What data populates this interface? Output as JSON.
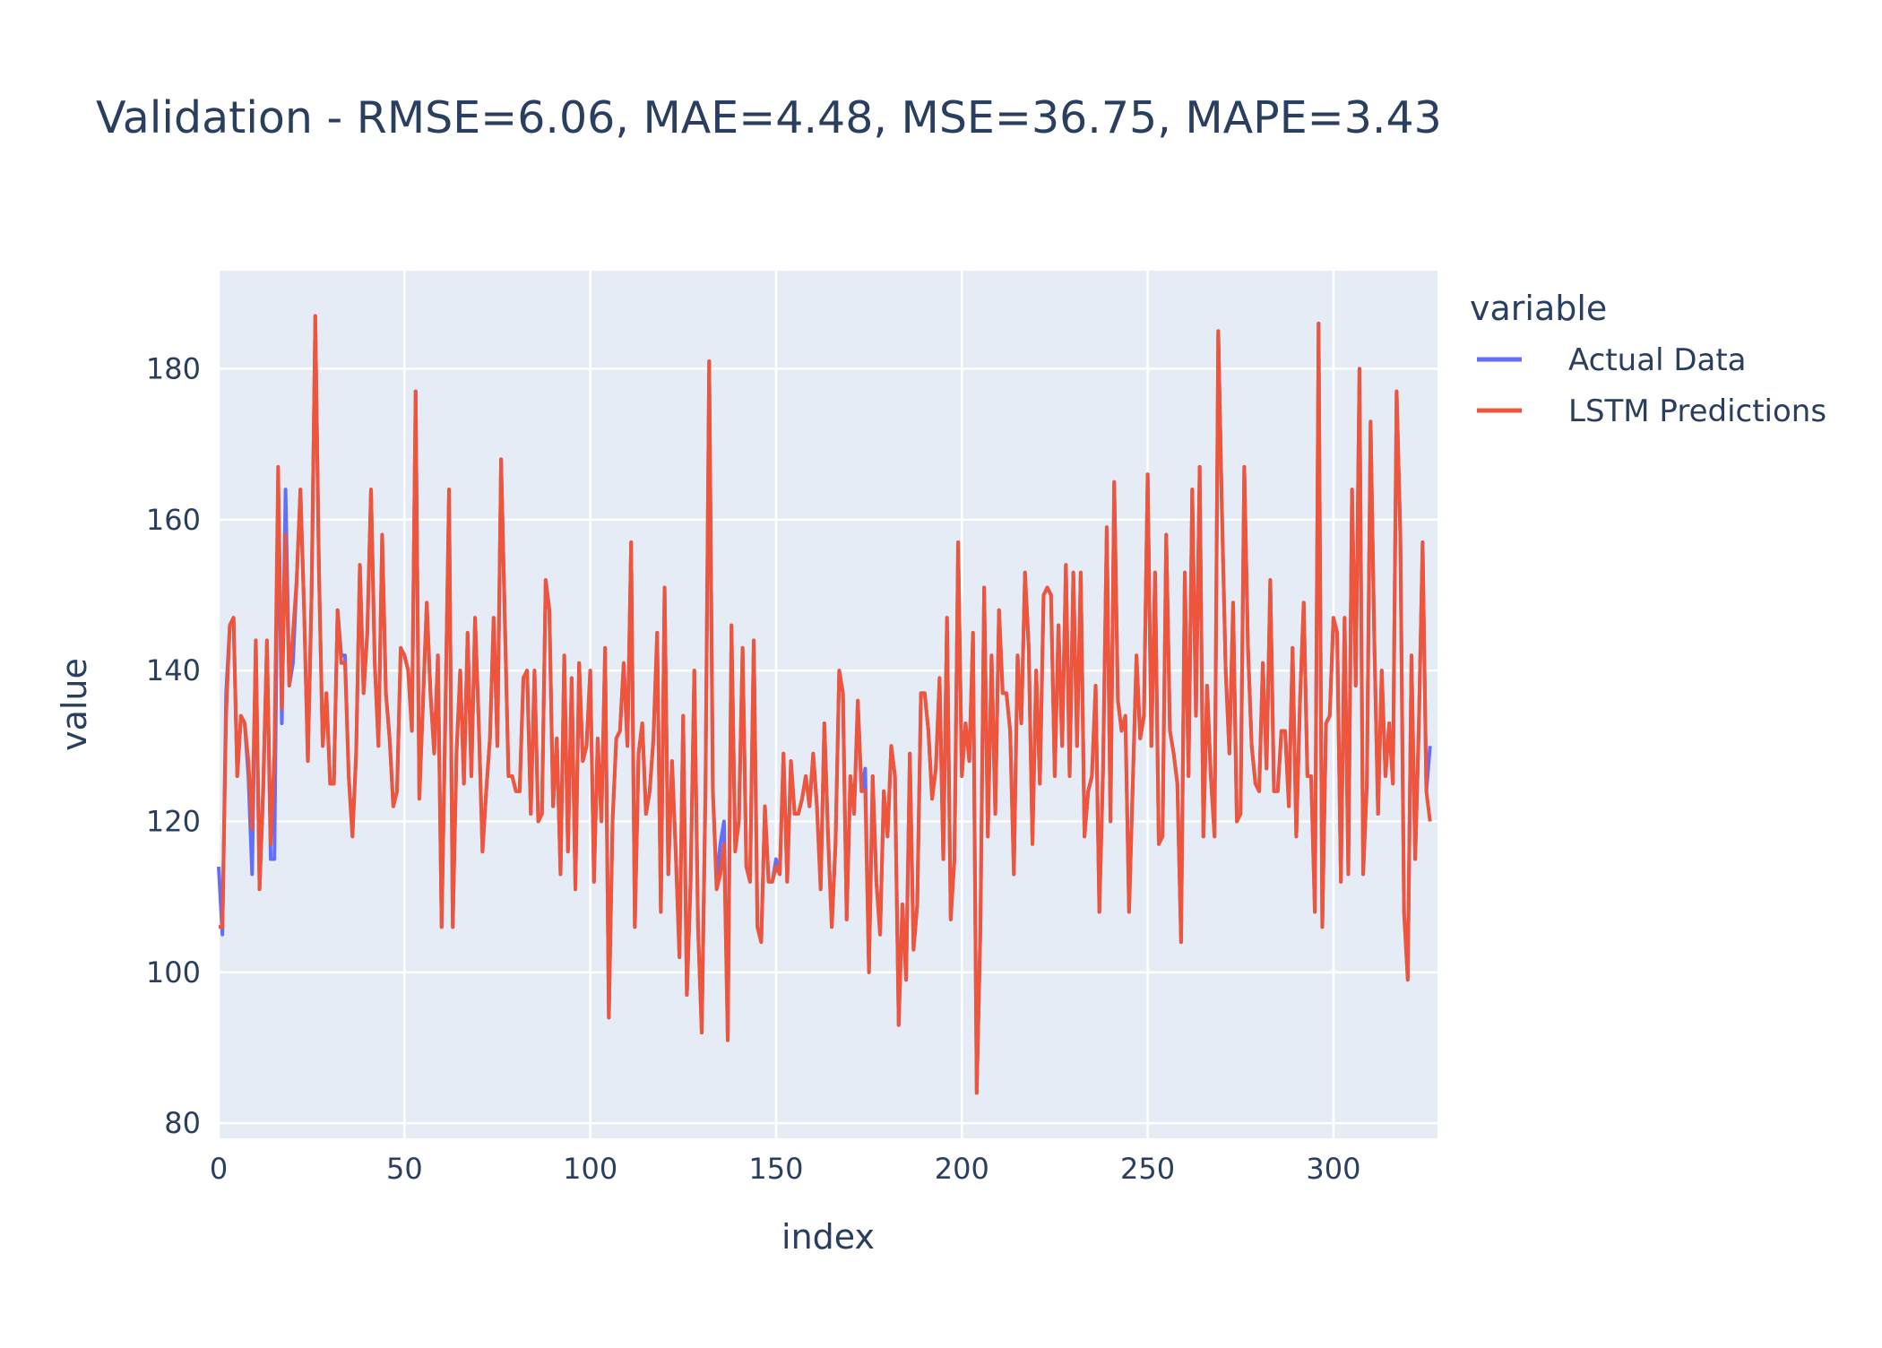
{
  "chart_data": {
    "type": "line",
    "title": "Validation - RMSE=6.06, MAE=4.48, MSE=36.75, MAPE=3.43",
    "xlabel": "index",
    "ylabel": "value",
    "xlim": [
      0,
      328
    ],
    "ylim": [
      78,
      193
    ],
    "x_ticks": [
      0,
      50,
      100,
      150,
      200,
      250,
      300
    ],
    "y_ticks": [
      80,
      100,
      120,
      140,
      160,
      180
    ],
    "grid": true,
    "legend": {
      "title": "variable",
      "position": "right"
    },
    "series": [
      {
        "name": "Actual Data",
        "color": "#636efa",
        "values": [
          114,
          105,
          137,
          146,
          147,
          126,
          134,
          133,
          126,
          113,
          144,
          111,
          124,
          144,
          115,
          115,
          165,
          133,
          164,
          138,
          141,
          152,
          164,
          148,
          128,
          150,
          187,
          153,
          130,
          137,
          125,
          125,
          148,
          142,
          142,
          126,
          118,
          129,
          154,
          137,
          145,
          164,
          141,
          130,
          158,
          137,
          131,
          122,
          124,
          143,
          142,
          140,
          132,
          177,
          123,
          136,
          149,
          137,
          129,
          142,
          106,
          134,
          164,
          106,
          129,
          140,
          125,
          145,
          126,
          147,
          133,
          116,
          124,
          131,
          147,
          130,
          168,
          147,
          126,
          126,
          124,
          124,
          139,
          140,
          121,
          140,
          120,
          121,
          152,
          148,
          122,
          131,
          113,
          142,
          116,
          139,
          111,
          141,
          128,
          130,
          140,
          112,
          131,
          120,
          143,
          94,
          120,
          131,
          132,
          141,
          130,
          157,
          106,
          129,
          133,
          121,
          124,
          131,
          145,
          108,
          151,
          113,
          128,
          116,
          102,
          134,
          97,
          112,
          140,
          106,
          92,
          124,
          181,
          124,
          112,
          117,
          120,
          91,
          146,
          117,
          120,
          143,
          114,
          112,
          144,
          106,
          104,
          122,
          112,
          112,
          115,
          113,
          129,
          112,
          128,
          121,
          121,
          123,
          126,
          122,
          129,
          122,
          111,
          133,
          118,
          106,
          117,
          140,
          137,
          107,
          126,
          121,
          136,
          124,
          127,
          100,
          126,
          112,
          105,
          124,
          118,
          130,
          126,
          93,
          109,
          99,
          129,
          103,
          109,
          137,
          137,
          132,
          123,
          127,
          139,
          115,
          147,
          107,
          115,
          157,
          126,
          133,
          128,
          145,
          84,
          106,
          151,
          118,
          142,
          121,
          148,
          137,
          137,
          132,
          113,
          142,
          133,
          153,
          143,
          117,
          140,
          125,
          150,
          151,
          150,
          126,
          146,
          130,
          154,
          126,
          153,
          130,
          153,
          118,
          124,
          126,
          138,
          108,
          127,
          159,
          120,
          165,
          136,
          132,
          134,
          108,
          125,
          142,
          131,
          134,
          166,
          130,
          153,
          117,
          118,
          158,
          132,
          129,
          125,
          104,
          153,
          126,
          164,
          134,
          167,
          118,
          138,
          126,
          118,
          185,
          161,
          140,
          129,
          149,
          120,
          121,
          167,
          143,
          130,
          125,
          124,
          141,
          127,
          152,
          124,
          124,
          132,
          132,
          122,
          143,
          118,
          136,
          149,
          126,
          126,
          108,
          186,
          106,
          133,
          134,
          147,
          145,
          112,
          147,
          113,
          164,
          138,
          180,
          113,
          125,
          173,
          144,
          121,
          140,
          126,
          133,
          125,
          177,
          158,
          108,
          99,
          142,
          115,
          133,
          157,
          124,
          130
        ]
      },
      {
        "name": "LSTM Predictions",
        "color": "#ef553b",
        "values": [
          106,
          106,
          134,
          146,
          147,
          126,
          134,
          133,
          128,
          119,
          144,
          111,
          125,
          144,
          117,
          129,
          167,
          135,
          158,
          138,
          145,
          152,
          164,
          148,
          128,
          150,
          187,
          153,
          130,
          137,
          125,
          125,
          148,
          141,
          141,
          126,
          118,
          129,
          154,
          137,
          145,
          164,
          141,
          130,
          158,
          137,
          131,
          122,
          124,
          143,
          142,
          140,
          132,
          177,
          123,
          136,
          149,
          137,
          129,
          142,
          106,
          134,
          164,
          106,
          129,
          140,
          125,
          145,
          126,
          147,
          133,
          116,
          124,
          131,
          147,
          130,
          168,
          147,
          126,
          126,
          124,
          124,
          139,
          140,
          121,
          140,
          120,
          121,
          152,
          148,
          122,
          131,
          113,
          142,
          116,
          139,
          111,
          141,
          128,
          130,
          140,
          112,
          131,
          120,
          143,
          94,
          120,
          131,
          132,
          141,
          130,
          157,
          106,
          129,
          133,
          121,
          124,
          131,
          145,
          108,
          151,
          113,
          128,
          116,
          102,
          134,
          97,
          112,
          140,
          106,
          92,
          124,
          181,
          124,
          111,
          113,
          117,
          91,
          146,
          116,
          120,
          143,
          114,
          112,
          144,
          106,
          104,
          122,
          112,
          112,
          114,
          113,
          129,
          112,
          128,
          121,
          121,
          123,
          126,
          122,
          129,
          122,
          111,
          133,
          118,
          106,
          117,
          140,
          137,
          107,
          126,
          121,
          136,
          124,
          124,
          100,
          126,
          112,
          105,
          124,
          118,
          130,
          126,
          93,
          109,
          99,
          129,
          103,
          109,
          137,
          137,
          132,
          123,
          127,
          139,
          115,
          147,
          107,
          115,
          157,
          126,
          133,
          128,
          145,
          84,
          106,
          151,
          118,
          142,
          121,
          148,
          137,
          137,
          132,
          113,
          142,
          133,
          153,
          143,
          117,
          140,
          125,
          150,
          151,
          150,
          126,
          146,
          130,
          154,
          126,
          153,
          130,
          153,
          118,
          124,
          126,
          138,
          108,
          127,
          159,
          120,
          165,
          136,
          132,
          134,
          108,
          125,
          142,
          131,
          134,
          166,
          130,
          153,
          117,
          118,
          158,
          132,
          129,
          125,
          104,
          153,
          126,
          164,
          134,
          167,
          118,
          138,
          126,
          118,
          185,
          161,
          140,
          129,
          149,
          120,
          121,
          167,
          143,
          130,
          125,
          124,
          141,
          127,
          152,
          124,
          124,
          132,
          132,
          122,
          143,
          118,
          136,
          149,
          126,
          126,
          108,
          186,
          106,
          133,
          134,
          147,
          145,
          112,
          147,
          113,
          164,
          138,
          180,
          113,
          125,
          173,
          144,
          121,
          140,
          126,
          133,
          125,
          177,
          158,
          108,
          99,
          142,
          115,
          133,
          157,
          124,
          120
        ]
      }
    ]
  }
}
